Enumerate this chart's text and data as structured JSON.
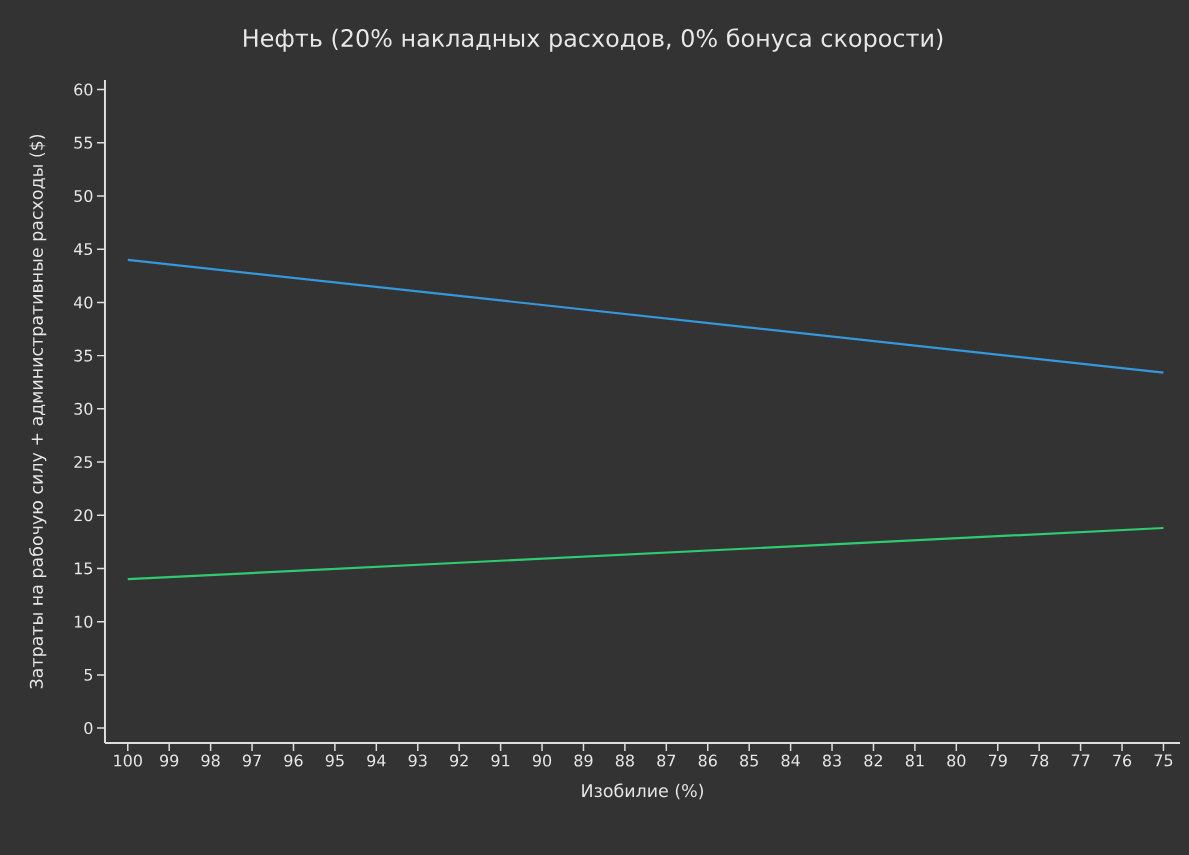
{
  "chart_data": {
    "type": "line",
    "title": "Нефть (20% накладных расходов, 0% бонуса скорости)",
    "xlabel": "Изобилие (%)",
    "ylabel": "Затраты на рабочую силу + административные расходы ($)",
    "x": [
      100,
      75
    ],
    "series": [
      {
        "color": "#3498db",
        "values": [
          44,
          33.4
        ]
      },
      {
        "color": "#2ecc71",
        "values": [
          14,
          18.8
        ]
      }
    ],
    "xlim": [
      100.55,
      74.6
    ],
    "ylim": [
      -1.4,
      60.9
    ],
    "xticks": [
      100,
      99,
      98,
      97,
      96,
      95,
      94,
      93,
      92,
      91,
      90,
      89,
      88,
      87,
      86,
      85,
      84,
      83,
      82,
      81,
      80,
      79,
      78,
      77,
      76,
      75
    ],
    "yticks": [
      0,
      5,
      10,
      15,
      20,
      25,
      30,
      35,
      40,
      45,
      50,
      55,
      60
    ],
    "marker": "none",
    "line_style": "solid"
  }
}
